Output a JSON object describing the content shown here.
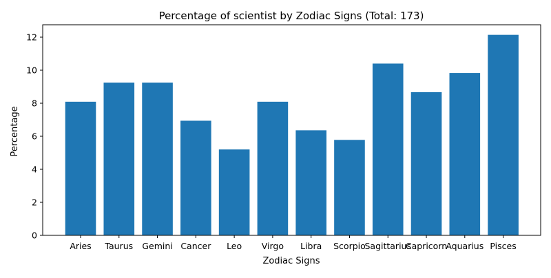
{
  "chart_data": {
    "type": "bar",
    "title": "Percentage of scientist by Zodiac Signs (Total: 173)",
    "xlabel": "Zodiac Signs",
    "ylabel": "Percentage",
    "categories": [
      "Aries",
      "Taurus",
      "Gemini",
      "Cancer",
      "Leo",
      "Virgo",
      "Libra",
      "Scorpio",
      "Sagittarius",
      "Capricorn",
      "Aquarius",
      "Pisces"
    ],
    "values": [
      8.09,
      9.25,
      9.25,
      6.94,
      5.2,
      8.09,
      6.36,
      5.78,
      10.4,
      8.67,
      9.83,
      12.14
    ],
    "ylim": [
      0,
      12.75
    ],
    "yticks": [
      0,
      2,
      4,
      6,
      8,
      10,
      12
    ],
    "bar_color": "#1f77b4",
    "grid": false,
    "legend": "none"
  }
}
